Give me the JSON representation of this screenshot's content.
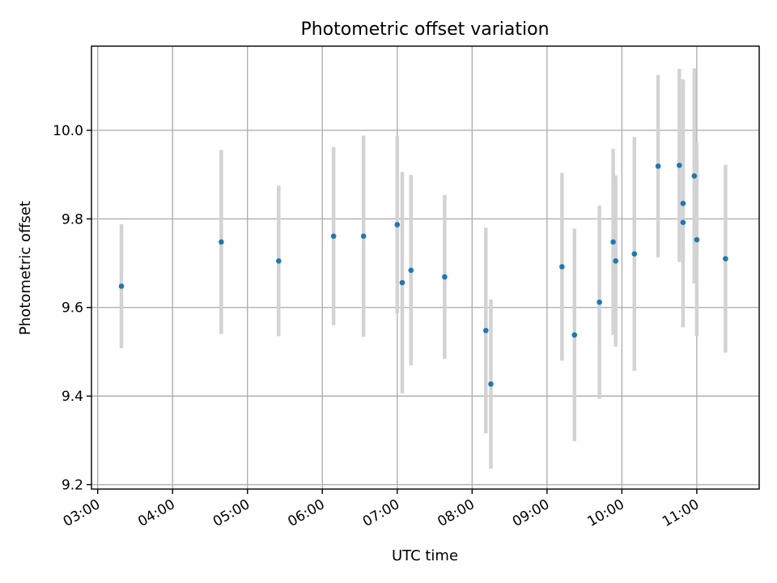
{
  "chart_data": {
    "type": "scatter",
    "title": "Photometric offset variation",
    "xlabel": "UTC time",
    "ylabel": "Photometric offset",
    "x_tick_labels": [
      "03:00",
      "04:00",
      "05:00",
      "06:00",
      "07:00",
      "08:00",
      "09:00",
      "10:00",
      "11:00"
    ],
    "y_tick_labels": [
      "9.2",
      "9.4",
      "9.6",
      "9.8",
      "10.0"
    ],
    "xlim": [
      "02:55",
      "11:50"
    ],
    "ylim": [
      9.19,
      10.19
    ],
    "grid": true,
    "colors": {
      "point": "#1f77b4",
      "errorbar": "#d3d3d3",
      "grid": "#b0b0b0"
    },
    "points": [
      {
        "t": "03:19",
        "y": 9.648,
        "err": 0.14
      },
      {
        "t": "04:39",
        "y": 9.748,
        "err": 0.208
      },
      {
        "t": "05:25",
        "y": 9.705,
        "err": 0.17
      },
      {
        "t": "06:09",
        "y": 9.761,
        "err": 0.201
      },
      {
        "t": "06:33",
        "y": 9.761,
        "err": 0.227
      },
      {
        "t": "07:00",
        "y": 9.787,
        "err": 0.2
      },
      {
        "t": "07:04",
        "y": 9.656,
        "err": 0.25
      },
      {
        "t": "07:11",
        "y": 9.684,
        "err": 0.215
      },
      {
        "t": "07:38",
        "y": 9.669,
        "err": 0.185
      },
      {
        "t": "08:11",
        "y": 9.548,
        "err": 0.232
      },
      {
        "t": "08:15",
        "y": 9.427,
        "err": 0.191
      },
      {
        "t": "09:12",
        "y": 9.692,
        "err": 0.212
      },
      {
        "t": "09:22",
        "y": 9.538,
        "err": 0.24
      },
      {
        "t": "09:42",
        "y": 9.612,
        "err": 0.218
      },
      {
        "t": "09:53",
        "y": 9.748,
        "err": 0.21
      },
      {
        "t": "09:55",
        "y": 9.705,
        "err": 0.193
      },
      {
        "t": "10:10",
        "y": 9.721,
        "err": 0.264
      },
      {
        "t": "10:29",
        "y": 9.919,
        "err": 0.206
      },
      {
        "t": "10:46",
        "y": 9.921,
        "err": 0.218
      },
      {
        "t": "10:49",
        "y": 9.835,
        "err": 0.28
      },
      {
        "t": "10:49",
        "y": 9.792,
        "err": 0.0
      },
      {
        "t": "10:58",
        "y": 9.897,
        "err": 0.243
      },
      {
        "t": "11:00",
        "y": 9.753,
        "err": 0.218
      },
      {
        "t": "11:23",
        "y": 9.71,
        "err": 0.212
      }
    ]
  }
}
